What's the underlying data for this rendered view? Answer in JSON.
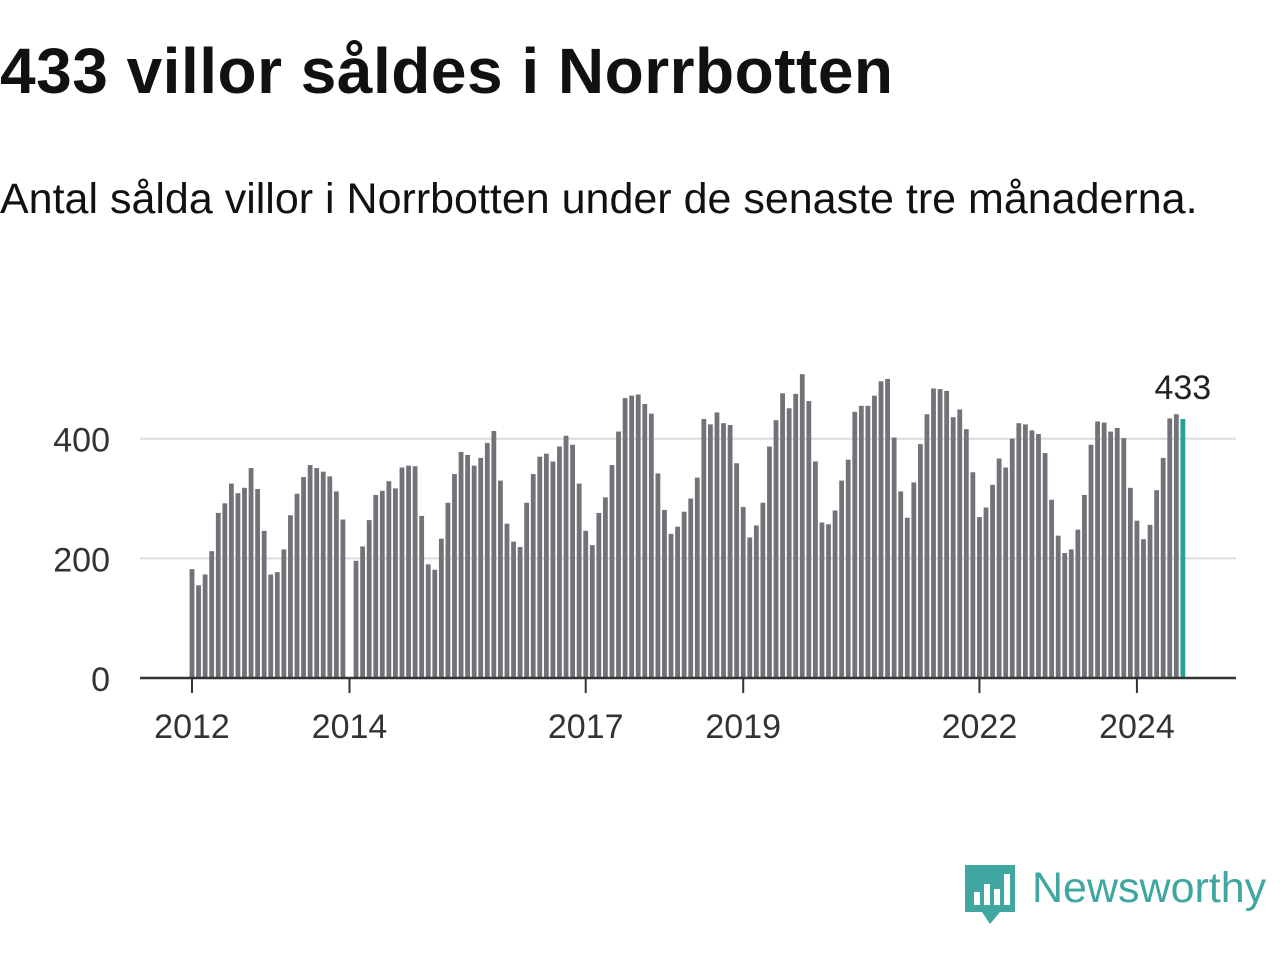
{
  "chart_data": {
    "type": "bar",
    "title": "433 villor såldes i Norrbotten",
    "subtitle": "Antal sålda villor i Norrbotten under de senaste tre månaderna.",
    "xlabel": "",
    "ylabel": "",
    "ylim": [
      0,
      540
    ],
    "yticks": [
      0,
      200,
      400
    ],
    "ytick_labels": [
      "0",
      "200",
      "400"
    ],
    "xticks": [
      {
        "label": "2012",
        "index": 0
      },
      {
        "label": "2014",
        "index": 24
      },
      {
        "label": "2017",
        "index": 60
      },
      {
        "label": "2019",
        "index": 84
      },
      {
        "label": "2022",
        "index": 120
      },
      {
        "label": "2024",
        "index": 144
      }
    ],
    "grid": true,
    "colors": {
      "bar": "#737278",
      "highlight": "#2aa198",
      "grid": "#dcdcdc",
      "axis": "#333333"
    },
    "highlight_label": "433",
    "values": [
      182,
      155,
      173,
      212,
      276,
      292,
      325,
      309,
      318,
      351,
      316,
      246,
      173,
      177,
      215,
      272,
      308,
      336,
      356,
      351,
      345,
      337,
      312,
      265,
      0,
      196,
      220,
      264,
      306,
      313,
      329,
      317,
      352,
      355,
      354,
      271,
      190,
      181,
      233,
      293,
      341,
      378,
      373,
      355,
      368,
      393,
      413,
      330,
      258,
      228,
      219,
      293,
      341,
      370,
      375,
      362,
      387,
      405,
      390,
      325,
      246,
      222,
      276,
      302,
      356,
      412,
      468,
      472,
      474,
      458,
      442,
      342,
      281,
      241,
      253,
      278,
      300,
      335,
      433,
      424,
      444,
      426,
      423,
      359,
      286,
      235,
      255,
      293,
      387,
      431,
      476,
      451,
      475,
      508,
      463,
      362,
      260,
      257,
      280,
      330,
      365,
      445,
      455,
      455,
      472,
      496,
      500,
      402,
      312,
      268,
      327,
      391,
      441,
      484,
      483,
      480,
      436,
      449,
      416,
      344,
      269,
      285,
      323,
      367,
      352,
      400,
      426,
      424,
      414,
      408,
      376,
      298,
      238,
      209,
      215,
      248,
      306,
      390,
      429,
      427,
      412,
      418,
      401,
      318,
      263,
      232,
      256,
      314,
      368,
      434,
      441,
      433
    ]
  },
  "brand": {
    "name": "Newsworthy",
    "color": "#3fa6a0"
  }
}
